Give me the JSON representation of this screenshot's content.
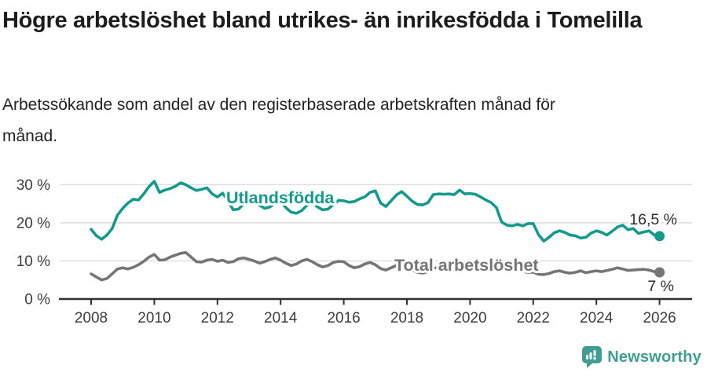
{
  "header": {
    "title": "Högre arbetslöshet bland utrikes- än inrikesfödda i Tomelilla",
    "subtitle": "Arbetssökande som andel av den registerbaserade arbetskraften månad för månad."
  },
  "chart_data": {
    "type": "line",
    "title": "Högre arbetslöshet bland utrikes- än inrikesfödda i Tomelilla",
    "xlabel": "",
    "ylabel": "",
    "x_start_year": 2008,
    "points_per_year": 6,
    "x_ticks": [
      2008,
      2010,
      2012,
      2014,
      2016,
      2018,
      2020,
      2022,
      2024,
      2026
    ],
    "x_tick_labels": [
      "2008",
      "2010",
      "2012",
      "2014",
      "2016",
      "2018",
      "2020",
      "2022",
      "2024",
      "2026"
    ],
    "y_ticks": [
      0,
      10,
      20,
      30
    ],
    "y_tick_labels": [
      "0 %",
      "10 %",
      "20 %",
      "30 %"
    ],
    "ylim": [
      0,
      33
    ],
    "grid": "horizontal-at-10-20-30",
    "legend_position": "labels-on-lines",
    "series": [
      {
        "name": "Utlandsfödda",
        "color": "#149a8d",
        "end_label": "16,5 %",
        "end_value": 16.5,
        "values": [
          18.3,
          16.6,
          15.7,
          16.8,
          18.5,
          22.0,
          23.8,
          25.2,
          26.2,
          26.0,
          27.6,
          29.5,
          30.9,
          28.0,
          28.6,
          29.0,
          29.6,
          30.5,
          30.0,
          29.2,
          28.5,
          28.8,
          29.2,
          27.6,
          26.8,
          27.8,
          25.8,
          23.4,
          23.6,
          25.0,
          26.3,
          25.6,
          24.6,
          23.8,
          24.2,
          25.2,
          25.6,
          24.0,
          22.8,
          22.5,
          23.2,
          24.6,
          25.4,
          24.2,
          23.4,
          23.6,
          24.8,
          25.9,
          25.8,
          25.4,
          25.6,
          26.3,
          26.8,
          28.0,
          28.4,
          25.2,
          24.3,
          25.8,
          27.3,
          28.2,
          27.0,
          25.7,
          24.8,
          24.7,
          25.3,
          27.4,
          27.6,
          27.5,
          27.6,
          27.4,
          28.6,
          27.6,
          27.7,
          27.5,
          26.8,
          26.0,
          25.3,
          24.0,
          20.2,
          19.4,
          19.2,
          19.6,
          19.2,
          19.8,
          19.8,
          16.9,
          15.2,
          16.2,
          17.4,
          17.9,
          17.5,
          16.8,
          16.6,
          16.0,
          16.2,
          17.3,
          17.9,
          17.5,
          16.8,
          17.8,
          18.9,
          19.4,
          18.2,
          18.5,
          17.2,
          17.6,
          17.9,
          16.8,
          16.5
        ]
      },
      {
        "name": "Total arbetslöshet",
        "color": "#757575",
        "end_label": "7 %",
        "end_value": 7,
        "values": [
          6.6,
          5.8,
          5.0,
          5.4,
          6.6,
          7.9,
          8.2,
          7.9,
          8.3,
          9.0,
          9.9,
          11.0,
          11.7,
          10.2,
          10.3,
          11.0,
          11.5,
          12.0,
          12.2,
          11.0,
          9.8,
          9.7,
          10.2,
          10.4,
          9.9,
          10.2,
          9.6,
          9.8,
          10.6,
          10.8,
          10.4,
          10.0,
          9.4,
          9.8,
          10.4,
          10.8,
          10.2,
          9.4,
          8.8,
          9.2,
          10.0,
          10.4,
          9.8,
          9.0,
          8.4,
          8.8,
          9.6,
          9.9,
          9.8,
          8.8,
          8.2,
          8.5,
          9.2,
          9.6,
          9.0,
          8.0,
          7.6,
          8.2,
          8.8,
          8.6,
          8.2,
          7.6,
          7.0,
          6.8,
          7.2,
          8.0,
          8.4,
          8.0,
          7.6,
          7.8,
          8.3,
          8.8,
          9.1,
          9.3,
          9.8,
          9.6,
          9.2,
          8.8,
          8.4,
          8.0,
          7.6,
          7.4,
          7.2,
          7.0,
          7.0,
          6.5,
          6.4,
          6.7,
          7.2,
          7.4,
          7.0,
          6.8,
          7.0,
          7.4,
          6.9,
          7.2,
          7.4,
          7.2,
          7.5,
          7.8,
          8.2,
          7.9,
          7.5,
          7.6,
          7.7,
          7.8,
          7.6,
          7.2,
          7.0
        ]
      }
    ],
    "colors": {
      "axis": "#2f2f2f",
      "gridline": "#d9d9d9",
      "tick_label": "#3c3c3c",
      "value_label": "#2e2e2e"
    }
  },
  "footer": {
    "brand": "Newsworthy",
    "brand_color": "#3f9d92",
    "logo_icon": "bar-chart-speech-bubble-icon"
  }
}
